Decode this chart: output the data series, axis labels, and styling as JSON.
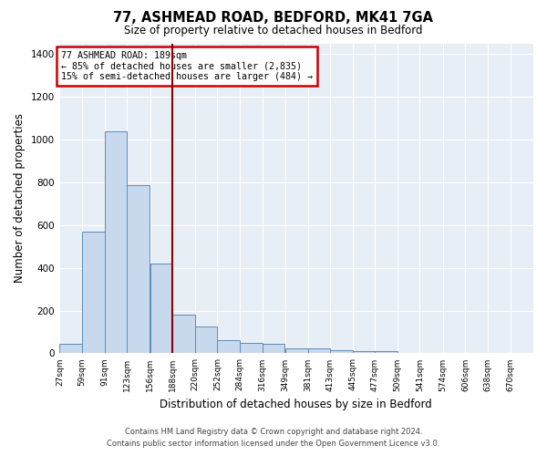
{
  "title1": "77, ASHMEAD ROAD, BEDFORD, MK41 7GA",
  "title2": "Size of property relative to detached houses in Bedford",
  "xlabel": "Distribution of detached houses by size in Bedford",
  "ylabel": "Number of detached properties",
  "bin_labels": [
    "27sqm",
    "59sqm",
    "91sqm",
    "123sqm",
    "156sqm",
    "188sqm",
    "220sqm",
    "252sqm",
    "284sqm",
    "316sqm",
    "349sqm",
    "381sqm",
    "413sqm",
    "445sqm",
    "477sqm",
    "509sqm",
    "541sqm",
    "574sqm",
    "606sqm",
    "638sqm",
    "670sqm"
  ],
  "bin_left_edges": [
    27,
    59,
    91,
    123,
    156,
    188,
    220,
    252,
    284,
    316,
    349,
    381,
    413,
    445,
    477,
    509,
    541,
    574,
    606,
    638,
    670
  ],
  "bar_heights": [
    45,
    570,
    1040,
    785,
    420,
    180,
    125,
    60,
    50,
    45,
    25,
    22,
    15,
    10,
    10,
    0,
    0,
    0,
    0,
    0
  ],
  "bar_color": "#c8d9ed",
  "bar_edge_color": "#5b8db8",
  "vline_x": 188,
  "vline_color": "#8b0000",
  "annotation_title": "77 ASHMEAD ROAD: 189sqm",
  "annotation_line1": "← 85% of detached houses are smaller (2,835)",
  "annotation_line2": "15% of semi-detached houses are larger (484) →",
  "annotation_box_color": "white",
  "annotation_box_edge": "#cc0000",
  "ylim": [
    0,
    1450
  ],
  "yticks": [
    0,
    200,
    400,
    600,
    800,
    1000,
    1200,
    1400
  ],
  "background_color": "#e8eef5",
  "grid_color": "white",
  "footer1": "Contains HM Land Registry data © Crown copyright and database right 2024.",
  "footer2": "Contains public sector information licensed under the Open Government Licence v3.0."
}
